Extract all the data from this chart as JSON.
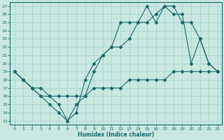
{
  "xlabel": "Humidex (Indice chaleur)",
  "background_color": "#c8e8e0",
  "grid_color": "#aad4cc",
  "line_color": "#1a6868",
  "xlim": [
    -0.5,
    23.5
  ],
  "ylim": [
    12.5,
    27.5
  ],
  "yticks": [
    13,
    14,
    15,
    16,
    17,
    18,
    19,
    20,
    21,
    22,
    23,
    24,
    25,
    26,
    27
  ],
  "xticks": [
    0,
    1,
    2,
    3,
    4,
    5,
    6,
    7,
    8,
    9,
    10,
    11,
    12,
    13,
    14,
    15,
    16,
    17,
    18,
    19,
    20,
    21,
    22,
    23
  ],
  "line1_x": [
    0,
    1,
    2,
    3,
    4,
    5,
    6,
    7,
    8,
    9,
    10,
    11,
    12,
    13,
    14,
    15,
    16,
    17,
    18,
    19,
    20,
    21,
    22,
    23
  ],
  "line1_y": [
    19,
    18,
    17,
    16,
    15,
    14,
    13,
    14,
    18,
    20,
    21,
    22,
    25,
    25,
    25,
    27,
    25,
    27,
    26,
    26,
    20,
    23,
    20,
    19
  ],
  "line2_x": [
    0,
    1,
    2,
    3,
    4,
    5,
    6,
    7,
    8,
    9,
    10,
    11,
    12,
    13,
    14,
    15,
    16,
    17,
    18,
    19,
    20,
    21,
    22,
    23
  ],
  "line2_y": [
    19,
    18,
    17,
    16,
    16,
    15,
    13,
    15,
    16,
    19,
    21,
    22,
    22,
    23,
    25,
    25,
    26,
    27,
    27,
    25,
    25,
    23,
    20,
    19
  ],
  "line3_x": [
    0,
    1,
    2,
    3,
    4,
    5,
    6,
    7,
    8,
    9,
    10,
    11,
    12,
    13,
    14,
    15,
    16,
    17,
    18,
    19,
    20,
    21,
    22,
    23
  ],
  "line3_y": [
    19,
    18,
    17,
    17,
    16,
    16,
    16,
    16,
    16,
    17,
    17,
    17,
    17,
    18,
    18,
    18,
    18,
    18,
    19,
    19,
    19,
    19,
    19,
    19
  ]
}
